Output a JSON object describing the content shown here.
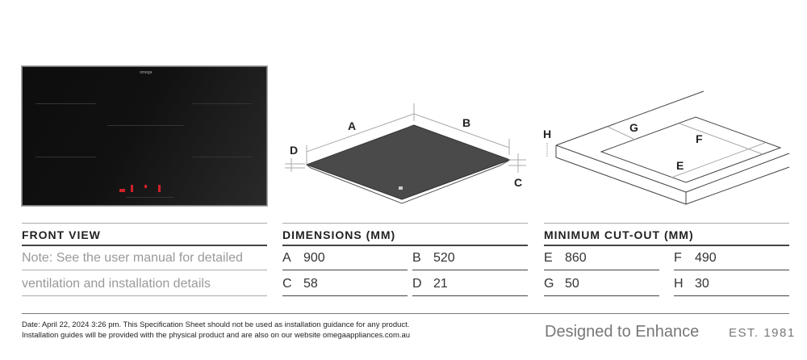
{
  "front_view": {
    "heading": "FRONT VIEW",
    "note_line1": "Note: See the user manual for detailed",
    "note_line2": "ventilation and installation details",
    "cooktop_brand": "omega"
  },
  "dimensions": {
    "heading": "DIMENSIONS (MM)",
    "labels": {
      "a": "A",
      "b": "B",
      "c": "C",
      "d": "D"
    },
    "values": {
      "a": "900",
      "b": "520",
      "c": "58",
      "d": "21"
    }
  },
  "cutout": {
    "heading": "MINIMUM CUT-OUT (MM)",
    "labels": {
      "e": "E",
      "f": "F",
      "g": "G",
      "h": "H"
    },
    "values": {
      "e": "860",
      "f": "490",
      "g": "50",
      "h": "30"
    }
  },
  "footer": {
    "line1": "Date: April 22, 2024 3:26 pm. This Specification Sheet should not be used as installation guidance for any product.",
    "line2": "Installation guides will be provided with the physical product and are also on our website omegaappliances.com.au",
    "tagline": "Designed to Enhance",
    "est": "EST. 1981"
  },
  "colors": {
    "cooktop": "#111111",
    "indicator": "#d0202a",
    "plate": "#4a4a4a"
  }
}
